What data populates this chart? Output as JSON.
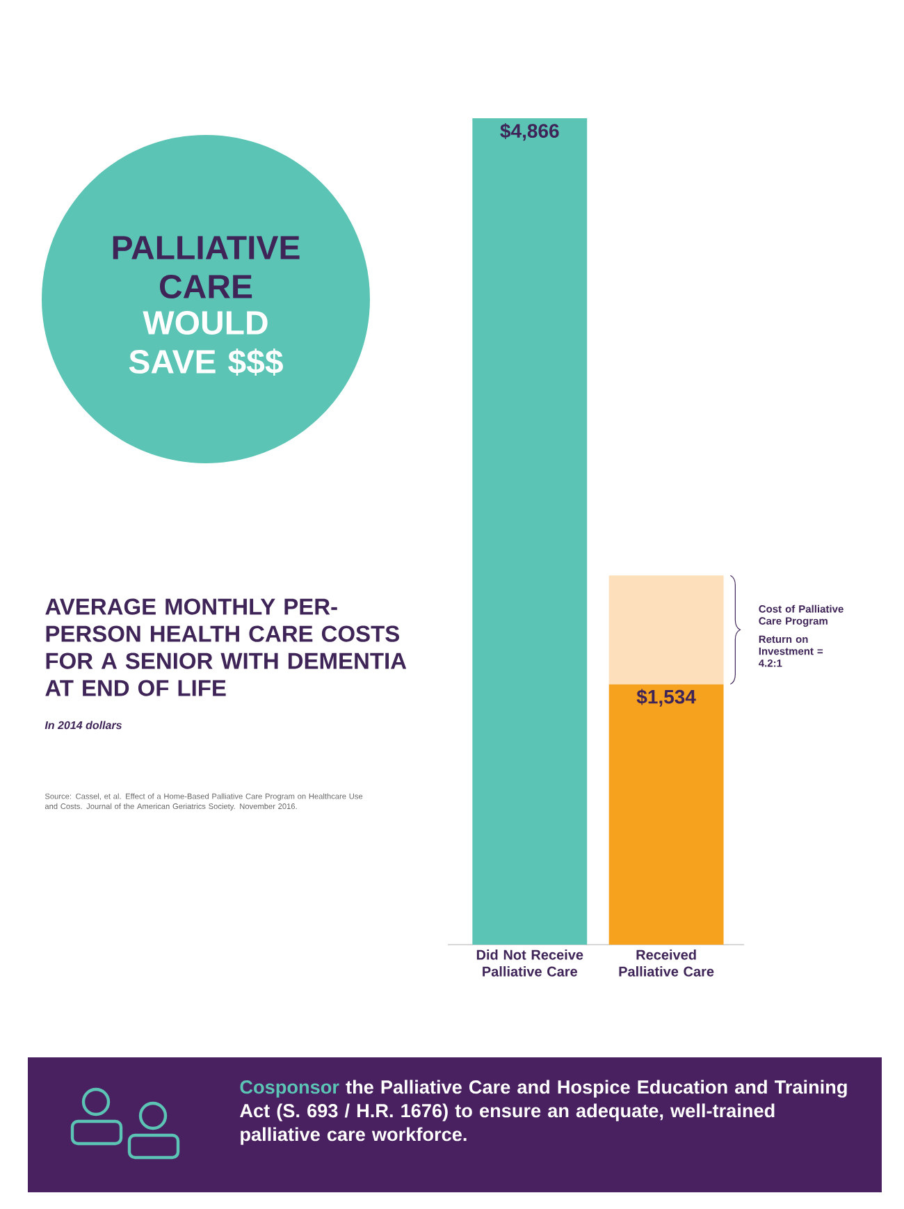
{
  "chart_data": {
    "type": "bar",
    "stacked": true,
    "title": "AVERAGE MONTHLY PER-PERSON HEALTH CARE COSTS FOR A SENIOR WITH DEMENTIA AT END OF LIFE",
    "subtitle": "In 2014 dollars",
    "categories": [
      "Did Not Receive Palliative Care",
      "Received Palliative Care"
    ],
    "series": [
      {
        "colors": [
          "#5bc4b5",
          "#f7a21e"
        ],
        "values": [
          4866,
          1534
        ],
        "value_labels": [
          "$4,866",
          "$1,534"
        ]
      },
      {
        "colors": [
          "#fde0bb",
          "#fde0bb"
        ],
        "values": [
          null,
          640
        ]
      }
    ],
    "annotations": [
      "PALLIATIVE CARE",
      "WOULD SAVE $$$",
      "Source: Cassel, et al. Effect of a Home-Based Palliative Care Program on Healthcare Use and Costs. Journal of the American Geriatrics Society. November 2016.",
      "Cost of Palliative Care Program",
      "Return on Investment = 4.2:1",
      "Cosponsor",
      "the Palliative Care and Hospice Education and Training Act (S. 693 / H.R. 1676) to ensure an adequate, well-trained palliative care workforce."
    ]
  }
}
